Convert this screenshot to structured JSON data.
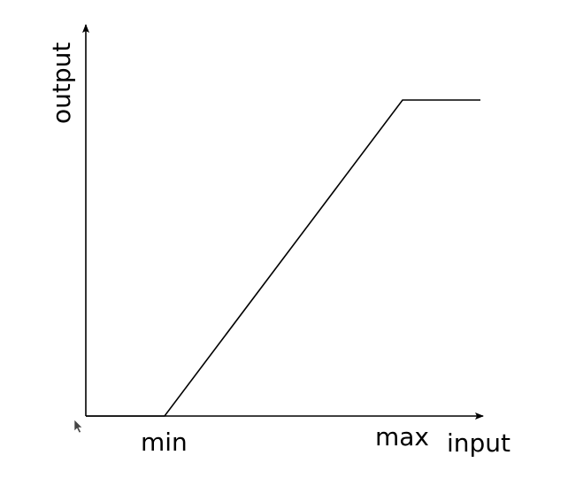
{
  "chart_data": {
    "type": "line",
    "xlabel": "input",
    "ylabel": "output",
    "x_tick_labels": [
      "min",
      "max"
    ],
    "series": [
      {
        "points": [
          {
            "x": "below min",
            "y": 0
          },
          {
            "x": "min",
            "y": 0
          },
          {
            "x": "max",
            "y": 1
          },
          {
            "x": "above max",
            "y": 1
          }
        ]
      }
    ],
    "grid": false,
    "legend": "none"
  },
  "colors": {
    "line": "#000000",
    "axes": "#000000",
    "background": "#ffffff"
  },
  "icons": {
    "cursor": "mouse-pointer-icon"
  }
}
